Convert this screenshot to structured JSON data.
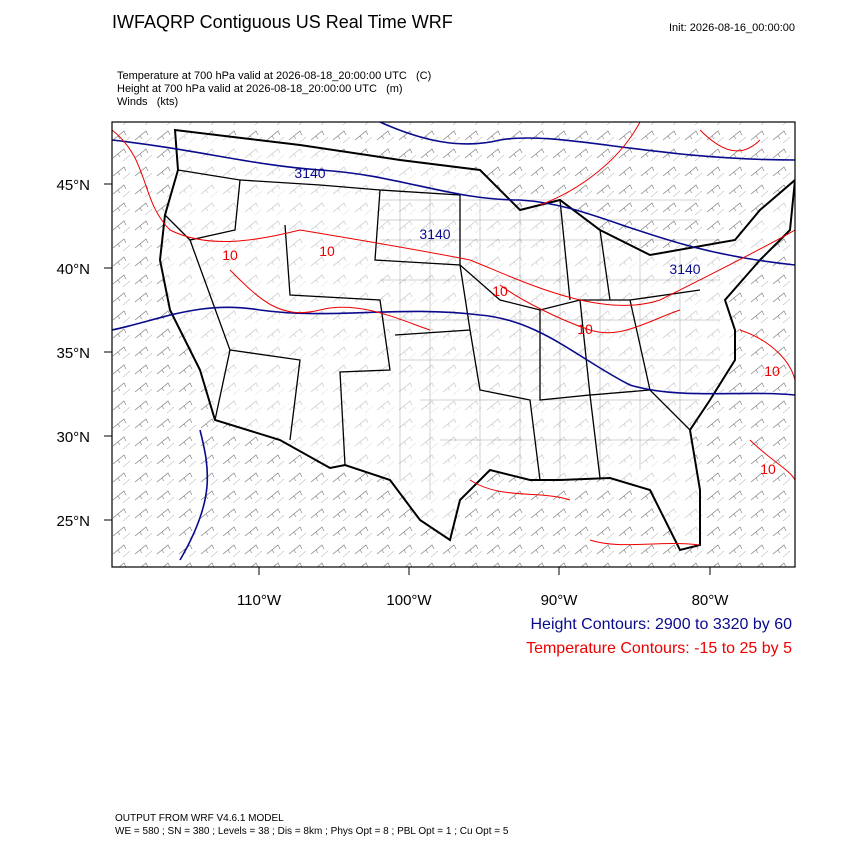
{
  "header": {
    "title": "IWFAQRP Contiguous US Real Time WRF",
    "init": "Init: 2026-08-16_00:00:00"
  },
  "subtitle": [
    "Temperature at 700 hPa valid at 2026-08-18_20:00:00 UTC   (C)",
    "Height at 700 hPa valid at 2026-08-18_20:00:00 UTC   (m)",
    "Winds   (kts)"
  ],
  "map": {
    "lat_labels": [
      "45°N",
      "40°N",
      "35°N",
      "30°N",
      "25°N"
    ],
    "lon_labels": [
      "110°W",
      "100°W",
      "90°W",
      "80°W"
    ],
    "height_contour_labels": [
      "3140",
      "3140",
      "3140"
    ],
    "temperature_contour_labels": [
      "10",
      "10",
      "10",
      "10",
      "10",
      "10"
    ]
  },
  "legend": {
    "height": "Height Contours: 2900 to 3320 by 60",
    "temperature": "Temperature Contours: -15 to 25 by 5"
  },
  "footer": [
    "OUTPUT FROM WRF V4.6.1 MODEL",
    "WE = 580 ; SN = 380 ; Levels = 38 ; Dis = 8km ; Phys Opt = 8 ; PBL Opt = 1 ; Cu Opt = 5"
  ]
}
